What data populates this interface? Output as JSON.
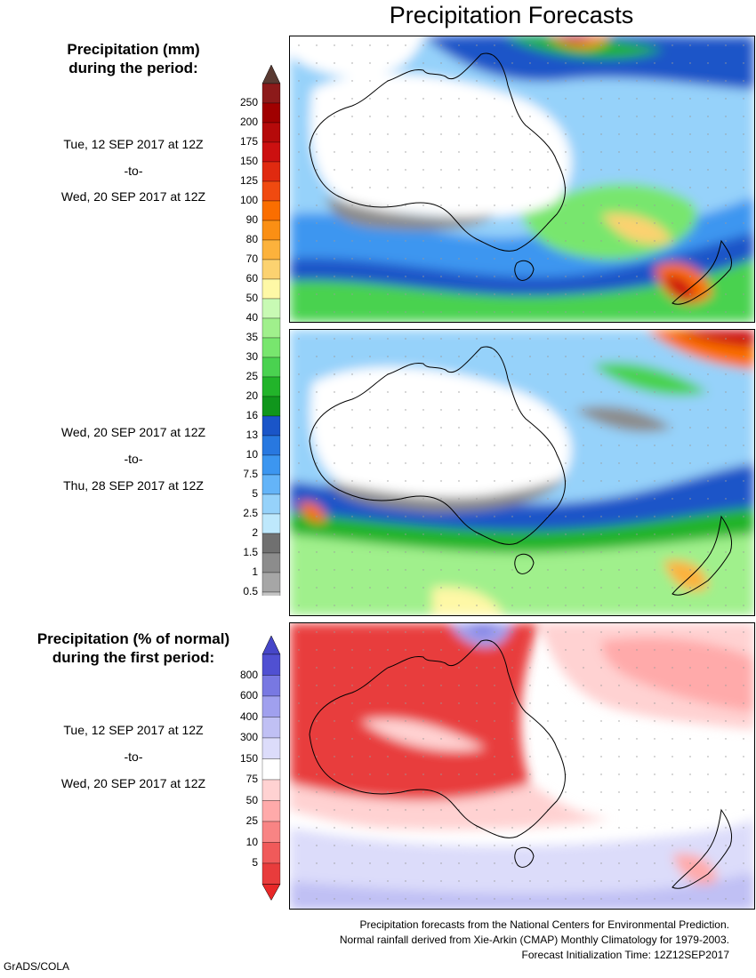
{
  "title": "Precipitation Forecasts",
  "section1": {
    "header_line1": "Precipitation (mm)",
    "header_line2": "during the period:",
    "period1": {
      "start": "Tue, 12 SEP 2017 at 12Z",
      "sep": "-to-",
      "end": "Wed, 20 SEP 2017 at 12Z"
    },
    "period2": {
      "start": "Wed, 20 SEP 2017 at 12Z",
      "sep": "-to-",
      "end": "Thu, 28 SEP 2017 at 12Z"
    }
  },
  "colorbar_mm": {
    "labels": [
      "250",
      "200",
      "175",
      "150",
      "125",
      "100",
      "90",
      "80",
      "70",
      "60",
      "50",
      "40",
      "35",
      "30",
      "25",
      "20",
      "16",
      "13",
      "10",
      "7.5",
      "5",
      "2.5",
      "2",
      "1.5",
      "1",
      "0.5"
    ],
    "colors": [
      "#8c1a1a",
      "#a00000",
      "#b50a0a",
      "#cc1010",
      "#e02a10",
      "#f04a10",
      "#fa6e00",
      "#fa8f14",
      "#fcb23c",
      "#fcd270",
      "#fef8a6",
      "#c8fab4",
      "#a0f08c",
      "#78e66e",
      "#4ad250",
      "#22b42a",
      "#10961c",
      "#1a55c8",
      "#2878e0",
      "#3c96f0",
      "#64b4f8",
      "#96d2fa",
      "#bee8fc",
      "#707070",
      "#8c8c8c",
      "#a6a6a6",
      "#c4c4c4"
    ],
    "top_cap": "#5a3a32"
  },
  "section2": {
    "header_line1": "Precipitation (% of normal)",
    "header_line2": "during the first period:",
    "period": {
      "start": "Tue, 12 SEP 2017 at 12Z",
      "sep": "-to-",
      "end": "Wed, 20 SEP 2017 at 12Z"
    }
  },
  "colorbar_pct": {
    "labels": [
      "800",
      "600",
      "400",
      "300",
      "150",
      "75",
      "50",
      "25",
      "10",
      "5"
    ],
    "colors": [
      "#5050d2",
      "#7878e2",
      "#a0a0ee",
      "#c0c0f4",
      "#dcdcfa",
      "#ffffff",
      "#ffd2d2",
      "#ffaaaa",
      "#f88484",
      "#f05a5a",
      "#e83c3c"
    ],
    "top_cap": "#4646c8",
    "bottom_cap": "#e82828"
  },
  "footer": {
    "line1": "Precipitation forecasts from the National Centers for Environmental Prediction.",
    "line2": "Normal rainfall derived from Xie-Arkin (CMAP) Monthly Climatology for 1979-2003.",
    "line3": "Forecast Initialization Time: 12Z12SEP2017"
  },
  "credit": "GrADS/COLA"
}
